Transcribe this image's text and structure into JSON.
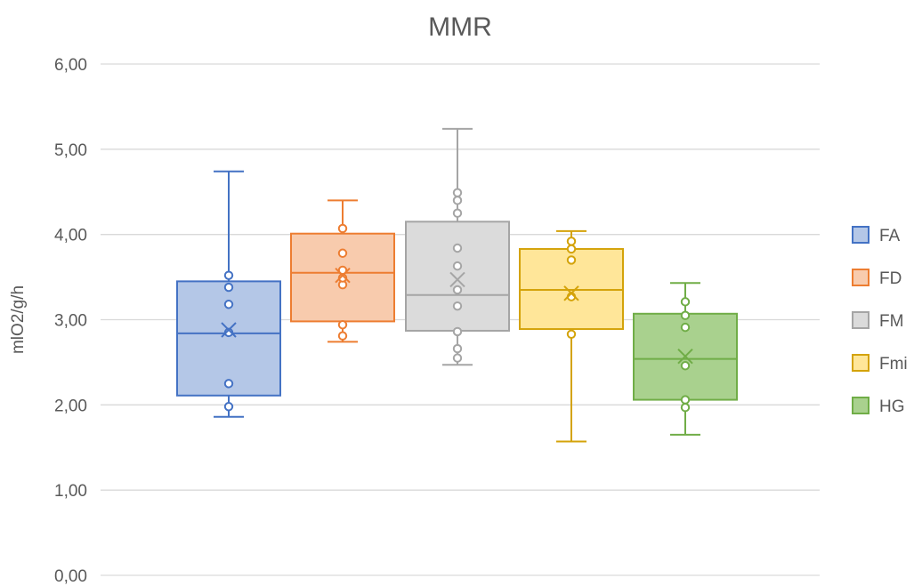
{
  "chart_data": {
    "type": "box",
    "title": "MMR",
    "xlabel": "",
    "ylabel": "mlO2/g/h",
    "ylim": [
      0,
      6
    ],
    "yticks": [
      "0,00",
      "1,00",
      "2,00",
      "3,00",
      "4,00",
      "5,00",
      "6,00"
    ],
    "grid": true,
    "legend_position": "right",
    "series": [
      {
        "name": "FA",
        "color": "#4472c4",
        "fill": "#b4c7e7",
        "whisker_low": 1.86,
        "q1": 2.11,
        "median": 2.84,
        "q3": 3.45,
        "whisker_high": 4.74,
        "mean": 2.88,
        "points": [
          1.98,
          2.25,
          2.85,
          3.18,
          3.38,
          3.52
        ]
      },
      {
        "name": "FD",
        "color": "#ed7d31",
        "fill": "#f8cbad",
        "whisker_low": 2.74,
        "q1": 2.98,
        "median": 3.55,
        "q3": 4.01,
        "whisker_high": 4.4,
        "mean": 3.52,
        "points": [
          2.81,
          2.94,
          3.41,
          3.49,
          3.58,
          3.78,
          4.07
        ]
      },
      {
        "name": "FM",
        "color": "#a5a5a5",
        "fill": "#dbdbdb",
        "whisker_low": 2.47,
        "q1": 2.87,
        "median": 3.29,
        "q3": 4.15,
        "whisker_high": 5.24,
        "mean": 3.47,
        "points": [
          2.55,
          2.66,
          2.86,
          3.16,
          3.35,
          3.63,
          3.84,
          4.25,
          4.4,
          4.49
        ]
      },
      {
        "name": "Fmi",
        "color": "#d4a30a",
        "fill": "#ffe699",
        "whisker_low": 1.57,
        "q1": 2.89,
        "median": 3.35,
        "q3": 3.83,
        "whisker_high": 4.04,
        "mean": 3.31,
        "points": [
          2.83,
          3.27,
          3.7,
          3.83,
          3.92
        ]
      },
      {
        "name": "HG",
        "color": "#70ad47",
        "fill": "#a9d18e",
        "whisker_low": 1.65,
        "q1": 2.06,
        "median": 2.54,
        "q3": 3.07,
        "whisker_high": 3.43,
        "mean": 2.57,
        "points": [
          1.97,
          2.06,
          2.46,
          2.91,
          3.05,
          3.21
        ]
      }
    ]
  }
}
